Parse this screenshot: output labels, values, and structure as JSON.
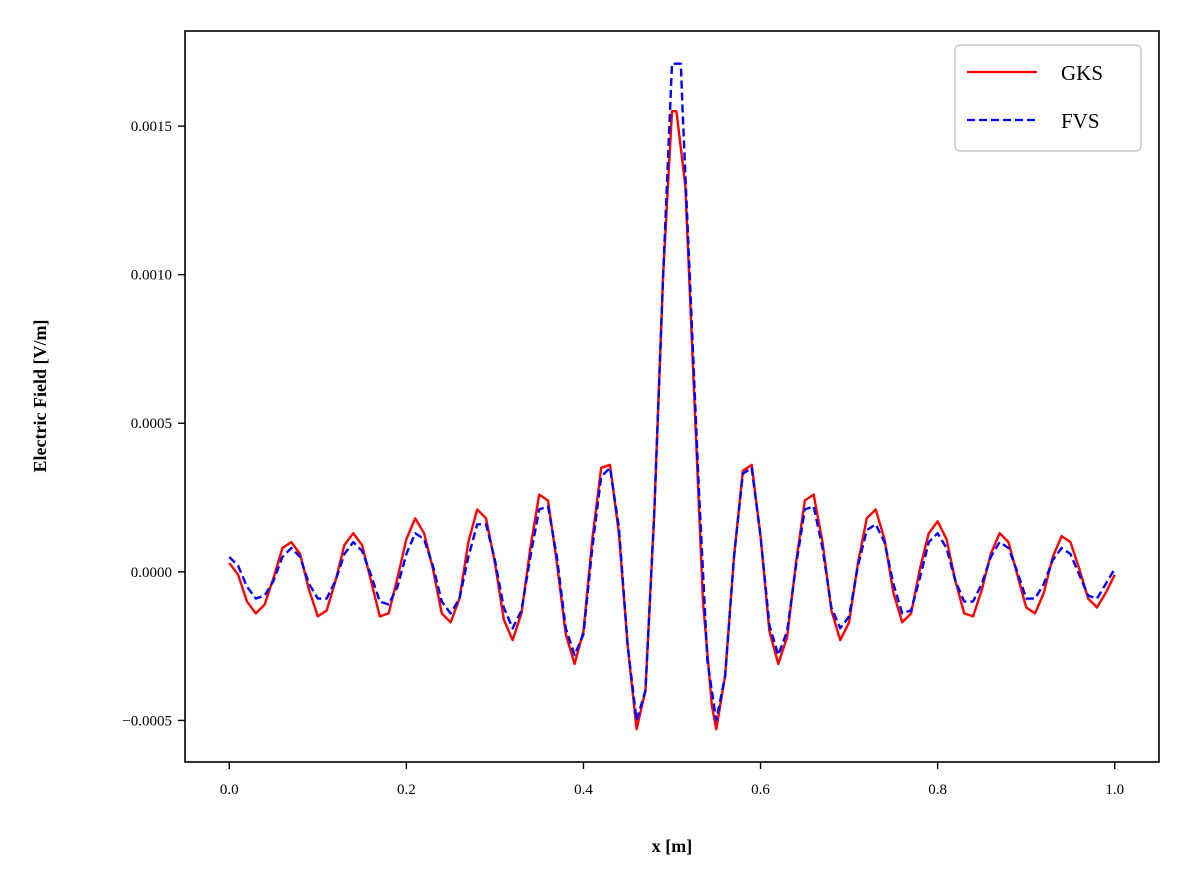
{
  "chart_data": {
    "type": "line",
    "title": "",
    "xlabel": "x [m]",
    "ylabel": "Electric Field [V/m]",
    "xlim": [
      -0.05,
      1.05
    ],
    "ylim": [
      -0.00064,
      0.00182
    ],
    "xticks": [
      0.0,
      0.2,
      0.4,
      0.6,
      0.8,
      1.0
    ],
    "xtick_labels": [
      "0.0",
      "0.2",
      "0.4",
      "0.6",
      "0.8",
      "1.0"
    ],
    "yticks": [
      -0.0005,
      0.0,
      0.0005,
      0.001,
      0.0015
    ],
    "ytick_labels": [
      "−0.0005",
      "0.0000",
      "0.0005",
      "0.0010",
      "0.0015"
    ],
    "grid": false,
    "legend_position": "top-right",
    "series": [
      {
        "name": "GKS",
        "color": "#ff0000",
        "linestyle": "solid",
        "points": [
          [
            0.0,
            3e-05
          ],
          [
            0.01,
            -1e-05
          ],
          [
            0.02,
            -0.0001
          ],
          [
            0.03,
            -0.00014
          ],
          [
            0.04,
            -0.00011
          ],
          [
            0.05,
            -2e-05
          ],
          [
            0.06,
            8e-05
          ],
          [
            0.07,
            0.0001
          ],
          [
            0.08,
            6e-05
          ],
          [
            0.09,
            -6e-05
          ],
          [
            0.1,
            -0.00015
          ],
          [
            0.11,
            -0.00013
          ],
          [
            0.12,
            -3e-05
          ],
          [
            0.13,
            9e-05
          ],
          [
            0.14,
            0.00013
          ],
          [
            0.15,
            9e-05
          ],
          [
            0.16,
            -3e-05
          ],
          [
            0.17,
            -0.00015
          ],
          [
            0.18,
            -0.00014
          ],
          [
            0.19,
            -2e-05
          ],
          [
            0.2,
            0.00011
          ],
          [
            0.21,
            0.00018
          ],
          [
            0.22,
            0.00013
          ],
          [
            0.23,
            1e-05
          ],
          [
            0.24,
            -0.00014
          ],
          [
            0.25,
            -0.00017
          ],
          [
            0.26,
            -9e-05
          ],
          [
            0.27,
            0.0001
          ],
          [
            0.28,
            0.00021
          ],
          [
            0.29,
            0.00018
          ],
          [
            0.3,
            3e-05
          ],
          [
            0.31,
            -0.00016
          ],
          [
            0.32,
            -0.00023
          ],
          [
            0.33,
            -0.00014
          ],
          [
            0.34,
            8e-05
          ],
          [
            0.35,
            0.00026
          ],
          [
            0.36,
            0.00024
          ],
          [
            0.37,
            3e-05
          ],
          [
            0.38,
            -0.00021
          ],
          [
            0.39,
            -0.00031
          ],
          [
            0.4,
            -0.0002
          ],
          [
            0.41,
            0.00011
          ],
          [
            0.42,
            0.00035
          ],
          [
            0.43,
            0.00036
          ],
          [
            0.44,
            0.00013
          ],
          [
            0.45,
            -0.00025
          ],
          [
            0.46,
            -0.00053
          ],
          [
            0.47,
            -0.0004
          ],
          [
            0.48,
            0.0002
          ],
          [
            0.49,
            0.001
          ],
          [
            0.5,
            0.00155
          ],
          [
            0.505,
            0.00155
          ],
          [
            0.515,
            0.0013
          ],
          [
            0.525,
            0.0006
          ],
          [
            0.535,
            -0.0001
          ],
          [
            0.545,
            -0.00045
          ],
          [
            0.55,
            -0.00053
          ],
          [
            0.56,
            -0.00035
          ],
          [
            0.57,
            5e-05
          ],
          [
            0.58,
            0.00034
          ],
          [
            0.59,
            0.00036
          ],
          [
            0.6,
            0.00012
          ],
          [
            0.61,
            -0.0002
          ],
          [
            0.62,
            -0.00031
          ],
          [
            0.63,
            -0.00022
          ],
          [
            0.64,
            3e-05
          ],
          [
            0.65,
            0.00024
          ],
          [
            0.66,
            0.00026
          ],
          [
            0.67,
            0.0001
          ],
          [
            0.68,
            -0.00013
          ],
          [
            0.69,
            -0.00023
          ],
          [
            0.7,
            -0.00017
          ],
          [
            0.71,
            3e-05
          ],
          [
            0.72,
            0.00018
          ],
          [
            0.73,
            0.00021
          ],
          [
            0.74,
            0.00011
          ],
          [
            0.75,
            -7e-05
          ],
          [
            0.76,
            -0.00017
          ],
          [
            0.77,
            -0.00014
          ],
          [
            0.78,
            1e-05
          ],
          [
            0.79,
            0.00013
          ],
          [
            0.8,
            0.00017
          ],
          [
            0.81,
            0.00011
          ],
          [
            0.82,
            -3e-05
          ],
          [
            0.83,
            -0.00014
          ],
          [
            0.84,
            -0.00015
          ],
          [
            0.85,
            -6e-05
          ],
          [
            0.86,
            6e-05
          ],
          [
            0.87,
            0.00013
          ],
          [
            0.88,
            0.0001
          ],
          [
            0.89,
            -1e-05
          ],
          [
            0.9,
            -0.00012
          ],
          [
            0.91,
            -0.00014
          ],
          [
            0.92,
            -7e-05
          ],
          [
            0.93,
            5e-05
          ],
          [
            0.94,
            0.00012
          ],
          [
            0.95,
            0.0001
          ],
          [
            0.96,
            1e-05
          ],
          [
            0.97,
            -9e-05
          ],
          [
            0.98,
            -0.00012
          ],
          [
            0.99,
            -7e-05
          ],
          [
            1.0,
            -1e-05
          ]
        ]
      },
      {
        "name": "FVS",
        "color": "#0000ff",
        "linestyle": "dashed",
        "points": [
          [
            0.0,
            5e-05
          ],
          [
            0.01,
            2e-05
          ],
          [
            0.02,
            -5e-05
          ],
          [
            0.03,
            -9e-05
          ],
          [
            0.04,
            -8e-05
          ],
          [
            0.05,
            -3e-05
          ],
          [
            0.06,
            5e-05
          ],
          [
            0.07,
            8e-05
          ],
          [
            0.08,
            5e-05
          ],
          [
            0.09,
            -4e-05
          ],
          [
            0.1,
            -9e-05
          ],
          [
            0.11,
            -9e-05
          ],
          [
            0.12,
            -3e-05
          ],
          [
            0.13,
            6e-05
          ],
          [
            0.14,
            0.0001
          ],
          [
            0.15,
            7e-05
          ],
          [
            0.16,
            -1e-05
          ],
          [
            0.17,
            -0.0001
          ],
          [
            0.18,
            -0.00011
          ],
          [
            0.19,
            -5e-05
          ],
          [
            0.2,
            6e-05
          ],
          [
            0.21,
            0.00013
          ],
          [
            0.22,
            0.00011
          ],
          [
            0.23,
            2e-05
          ],
          [
            0.24,
            -0.0001
          ],
          [
            0.25,
            -0.00014
          ],
          [
            0.26,
            -9e-05
          ],
          [
            0.27,
            5e-05
          ],
          [
            0.28,
            0.00016
          ],
          [
            0.29,
            0.00016
          ],
          [
            0.3,
            4e-05
          ],
          [
            0.31,
            -0.00012
          ],
          [
            0.32,
            -0.00019
          ],
          [
            0.33,
            -0.00013
          ],
          [
            0.34,
            5e-05
          ],
          [
            0.35,
            0.00021
          ],
          [
            0.36,
            0.00022
          ],
          [
            0.37,
            5e-05
          ],
          [
            0.38,
            -0.00019
          ],
          [
            0.39,
            -0.00028
          ],
          [
            0.4,
            -0.00021
          ],
          [
            0.41,
            8e-05
          ],
          [
            0.42,
            0.00032
          ],
          [
            0.43,
            0.00035
          ],
          [
            0.44,
            0.00015
          ],
          [
            0.45,
            -0.00025
          ],
          [
            0.46,
            -0.0005
          ],
          [
            0.47,
            -0.0004
          ],
          [
            0.48,
            0.0002
          ],
          [
            0.49,
            0.001
          ],
          [
            0.5,
            0.00171
          ],
          [
            0.51,
            0.00171
          ],
          [
            0.512,
            0.00155
          ],
          [
            0.52,
            0.001
          ],
          [
            0.53,
            0.0003
          ],
          [
            0.54,
            -0.0003
          ],
          [
            0.55,
            -0.0005
          ],
          [
            0.56,
            -0.00035
          ],
          [
            0.57,
            5e-05
          ],
          [
            0.58,
            0.00033
          ],
          [
            0.59,
            0.00035
          ],
          [
            0.6,
            0.00012
          ],
          [
            0.61,
            -0.00018
          ],
          [
            0.62,
            -0.00028
          ],
          [
            0.63,
            -0.0002
          ],
          [
            0.64,
            2e-05
          ],
          [
            0.65,
            0.00021
          ],
          [
            0.66,
            0.00022
          ],
          [
            0.67,
            8e-05
          ],
          [
            0.68,
            -0.00012
          ],
          [
            0.69,
            -0.00019
          ],
          [
            0.7,
            -0.00015
          ],
          [
            0.71,
            2e-05
          ],
          [
            0.72,
            0.00014
          ],
          [
            0.73,
            0.00016
          ],
          [
            0.74,
            0.0001
          ],
          [
            0.75,
            -4e-05
          ],
          [
            0.76,
            -0.00014
          ],
          [
            0.77,
            -0.00013
          ],
          [
            0.78,
            -2e-05
          ],
          [
            0.79,
            0.0001
          ],
          [
            0.8,
            0.00013
          ],
          [
            0.81,
            8e-05
          ],
          [
            0.82,
            -3e-05
          ],
          [
            0.83,
            -0.0001
          ],
          [
            0.84,
            -0.0001
          ],
          [
            0.85,
            -4e-05
          ],
          [
            0.86,
            5e-05
          ],
          [
            0.87,
            0.0001
          ],
          [
            0.88,
            8e-05
          ],
          [
            0.89,
            0.0
          ],
          [
            0.9,
            -9e-05
          ],
          [
            0.91,
            -9e-05
          ],
          [
            0.92,
            -4e-05
          ],
          [
            0.93,
            4e-05
          ],
          [
            0.94,
            8e-05
          ],
          [
            0.95,
            6e-05
          ],
          [
            0.96,
            -1e-05
          ],
          [
            0.97,
            -8e-05
          ],
          [
            0.98,
            -9e-05
          ],
          [
            0.99,
            -4e-05
          ],
          [
            1.0,
            1e-05
          ]
        ]
      }
    ]
  }
}
